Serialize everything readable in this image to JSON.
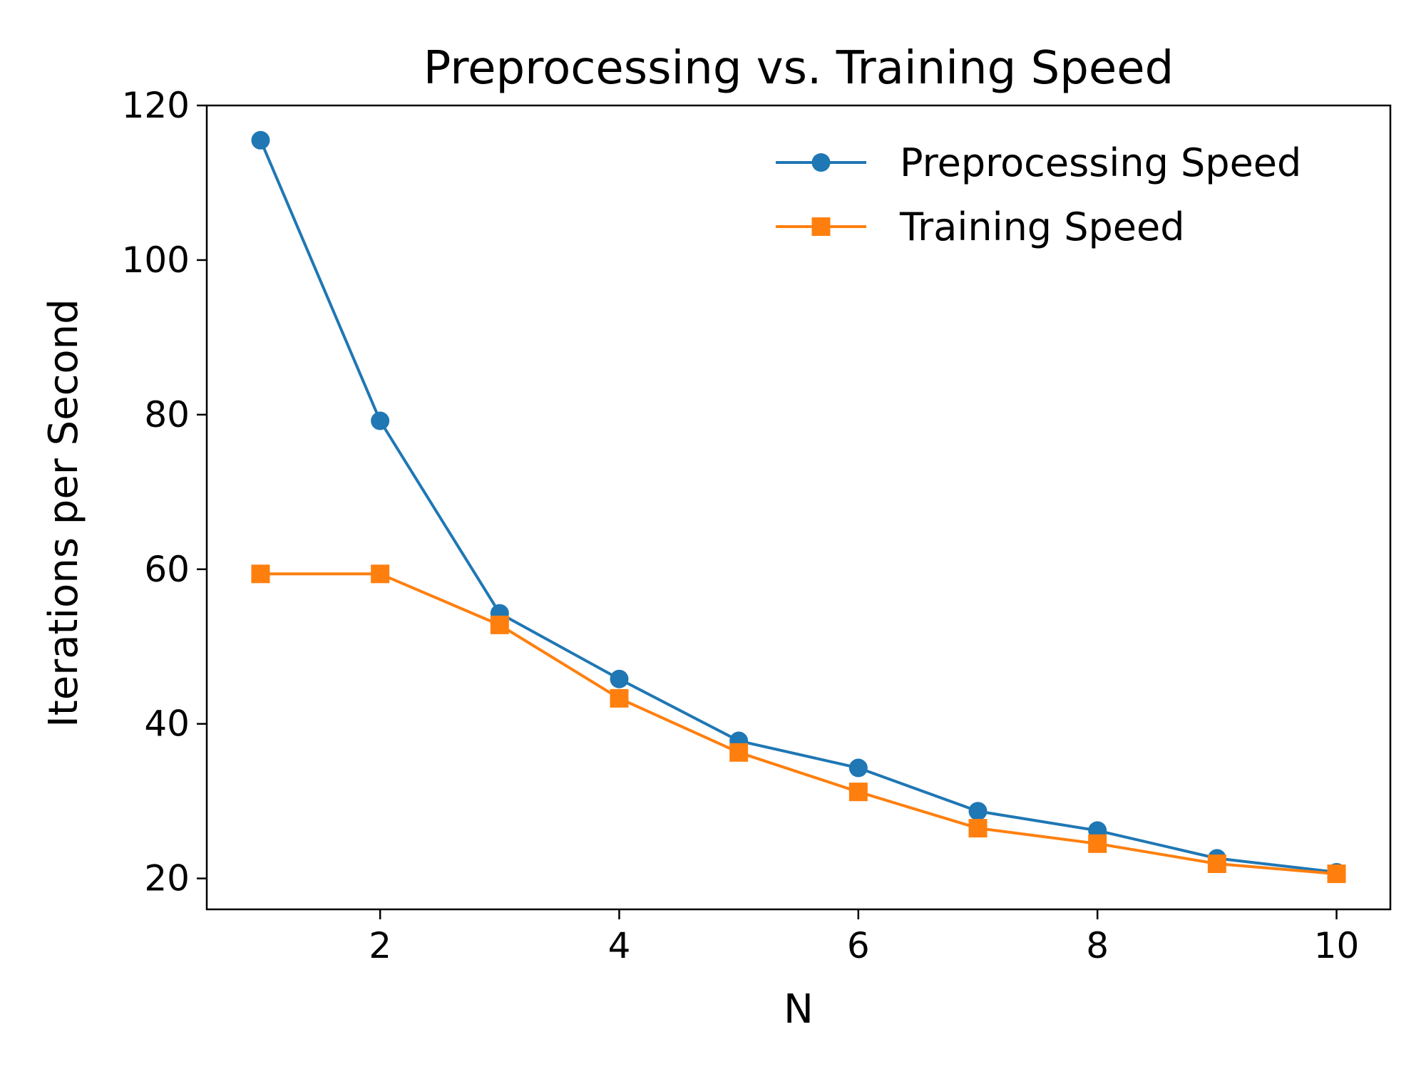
{
  "chart_data": {
    "type": "line",
    "title": "Preprocessing vs. Training Speed",
    "xlabel": "N",
    "ylabel": "Iterations per Second",
    "xlim": [
      0.55,
      10.45
    ],
    "ylim": [
      16,
      120
    ],
    "xticks": [
      2,
      4,
      6,
      8,
      10
    ],
    "yticks": [
      20,
      40,
      60,
      80,
      100,
      120
    ],
    "x": [
      1,
      2,
      3,
      4,
      5,
      6,
      7,
      8,
      9,
      10
    ],
    "grid": false,
    "legend_position": "top-right",
    "series": [
      {
        "name": "Preprocessing Speed",
        "marker": "circle",
        "color": "#1f77b4",
        "values": [
          115.5,
          79.2,
          54.3,
          45.8,
          37.8,
          34.3,
          28.7,
          26.2,
          22.6,
          20.8
        ]
      },
      {
        "name": "Training Speed",
        "marker": "square",
        "color": "#ff7f0e",
        "values": [
          59.4,
          59.4,
          52.8,
          43.3,
          36.3,
          31.2,
          26.5,
          24.5,
          21.9,
          20.6
        ]
      }
    ]
  }
}
